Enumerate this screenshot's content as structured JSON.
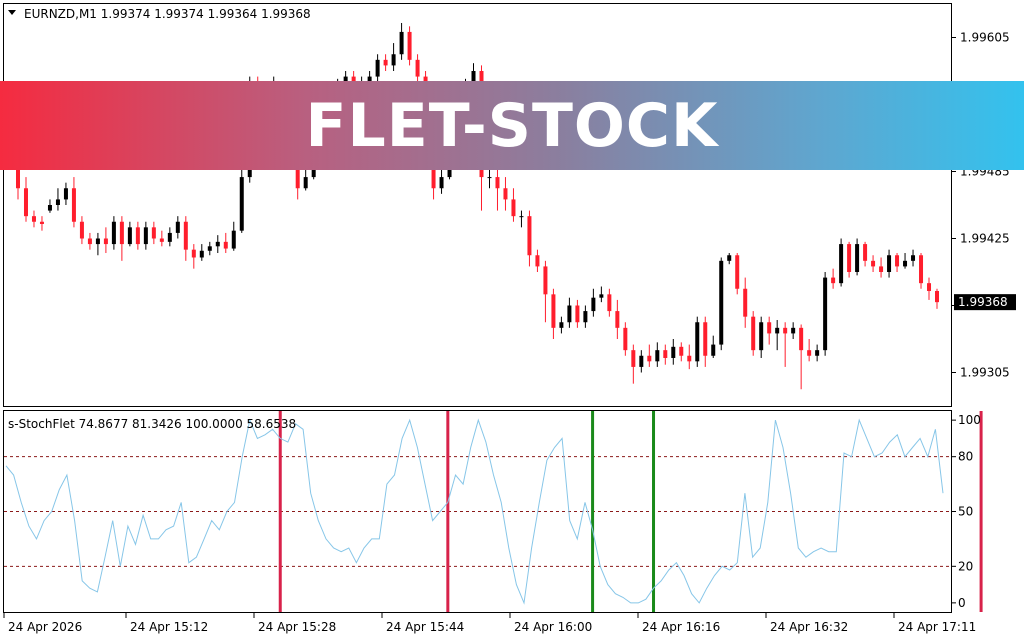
{
  "window": {
    "symbol_info": "EURNZD,M1  1.99374 1.99374 1.99364 1.99368",
    "current_price": "1.99368"
  },
  "banner": {
    "text": "FLET-STOCK"
  },
  "indicator": {
    "label": "s-StochFlet 74.8677 81.3426 100.0000 58.6538"
  },
  "colors": {
    "bull": "#000000",
    "bear": "#ff1e2d",
    "stoch_line": "#87c6e8",
    "level_line": "#8b1a1a",
    "sell_signal": "#d8224a",
    "buy_signal": "#1a8a1a"
  },
  "chart_data": [
    {
      "type": "candlestick",
      "y_ticks": [
        "1.99605",
        "1.99545",
        "1.99485",
        "1.99425",
        "1.99365",
        "1.99305"
      ],
      "y_tick_values": [
        1.99605,
        1.99545,
        1.99485,
        1.99425,
        1.99365,
        1.99305
      ],
      "ylim": [
        1.99275,
        1.99635
      ],
      "last_price": 1.99368,
      "candles": [
        [
          1.9949,
          1.9947,
          1.995,
          1.9946
        ],
        [
          1.9947,
          1.99445,
          1.9948,
          1.9944
        ],
        [
          1.99445,
          1.9944,
          1.9945,
          1.99435
        ],
        [
          1.9944,
          1.99438,
          1.99445,
          1.99432
        ],
        [
          1.9945,
          1.99455,
          1.9946,
          1.99448
        ],
        [
          1.99455,
          1.9946,
          1.9947,
          1.9945
        ],
        [
          1.9946,
          1.9947,
          1.99475,
          1.99455
        ],
        [
          1.9947,
          1.9944,
          1.9948,
          1.99435
        ],
        [
          1.9944,
          1.99425,
          1.99445,
          1.9942
        ],
        [
          1.99425,
          1.9942,
          1.9943,
          1.99415
        ],
        [
          1.9942,
          1.99425,
          1.9943,
          1.9941
        ],
        [
          1.99425,
          1.9942,
          1.99435,
          1.99412
        ],
        [
          1.9942,
          1.9944,
          1.99445,
          1.99415
        ],
        [
          1.9944,
          1.9942,
          1.99445,
          1.99405
        ],
        [
          1.9942,
          1.99435,
          1.9944,
          1.99418
        ],
        [
          1.99435,
          1.9942,
          1.9944,
          1.99415
        ],
        [
          1.9942,
          1.99435,
          1.9944,
          1.99415
        ],
        [
          1.99435,
          1.99425,
          1.9944,
          1.9942
        ],
        [
          1.99425,
          1.99422,
          1.99432,
          1.99418
        ],
        [
          1.99422,
          1.9943,
          1.99435,
          1.99418
        ],
        [
          1.9943,
          1.9944,
          1.99445,
          1.99425
        ],
        [
          1.9944,
          1.99415,
          1.99445,
          1.99405
        ],
        [
          1.99415,
          1.99408,
          1.9942,
          1.99398
        ],
        [
          1.99408,
          1.99414,
          1.9942,
          1.99405
        ],
        [
          1.99414,
          1.99418,
          1.99422,
          1.9941
        ],
        [
          1.99418,
          1.99422,
          1.99428,
          1.99412
        ],
        [
          1.99422,
          1.99416,
          1.9943,
          1.99412
        ],
        [
          1.99416,
          1.99432,
          1.9944,
          1.99414
        ],
        [
          1.99432,
          1.9948,
          1.9954,
          1.9943
        ],
        [
          1.9948,
          1.9956,
          1.9957,
          1.99475
        ],
        [
          1.9956,
          1.9955,
          1.9957,
          1.99545
        ],
        [
          1.9955,
          1.99555,
          1.99565,
          1.99548
        ],
        [
          1.99555,
          1.9956,
          1.9957,
          1.99552
        ],
        [
          1.9956,
          1.9954,
          1.99565,
          1.99535
        ],
        [
          1.9954,
          1.99545,
          1.99555,
          1.99535
        ],
        [
          1.99545,
          1.9947,
          1.9956,
          1.9946
        ],
        [
          1.9947,
          1.9948,
          1.9949,
          1.99468
        ],
        [
          1.9948,
          1.9953,
          1.9954,
          1.99478
        ],
        [
          1.9953,
          1.99545,
          1.9955,
          1.99525
        ],
        [
          1.99545,
          1.9954,
          1.99552,
          1.99535
        ],
        [
          1.9954,
          1.9956,
          1.99568,
          1.99535
        ],
        [
          1.9956,
          1.9957,
          1.99575,
          1.99555
        ],
        [
          1.9957,
          1.9956,
          1.99575,
          1.99555
        ],
        [
          1.9956,
          1.99565,
          1.9957,
          1.99555
        ],
        [
          1.99565,
          1.9957,
          1.99575,
          1.9956
        ],
        [
          1.9957,
          1.99585,
          1.9959,
          1.99565
        ],
        [
          1.99585,
          1.9958,
          1.9959,
          1.99575
        ],
        [
          1.9958,
          1.9959,
          1.996,
          1.99575
        ],
        [
          1.9959,
          1.9961,
          1.99618,
          1.99585
        ],
        [
          1.9961,
          1.99585,
          1.99615,
          1.9958
        ],
        [
          1.99585,
          1.9957,
          1.9959,
          1.9956
        ],
        [
          1.9957,
          1.99545,
          1.99575,
          1.9952
        ],
        [
          1.99545,
          1.9947,
          1.9955,
          1.9946
        ],
        [
          1.9947,
          1.9948,
          1.9949,
          1.99465
        ],
        [
          1.9948,
          1.9953,
          1.9954,
          1.99478
        ],
        [
          1.9953,
          1.99545,
          1.9955,
          1.99525
        ],
        [
          1.99545,
          1.9956,
          1.99568,
          1.9954
        ],
        [
          1.9956,
          1.99575,
          1.99582,
          1.99555
        ],
        [
          1.99575,
          1.9948,
          1.9958,
          1.9945
        ],
        [
          1.9948,
          1.9948,
          1.9949,
          1.9947
        ],
        [
          1.9948,
          1.9947,
          1.9949,
          1.9945
        ],
        [
          1.9947,
          1.9946,
          1.9948,
          1.9945
        ],
        [
          1.9946,
          1.99445,
          1.9947,
          1.9944
        ],
        [
          1.99445,
          1.99445,
          1.9945,
          1.99435
        ],
        [
          1.99445,
          1.9941,
          1.9945,
          1.994
        ],
        [
          1.9941,
          1.994,
          1.99415,
          1.99395
        ],
        [
          1.994,
          1.99375,
          1.99405,
          1.9935
        ],
        [
          1.99375,
          1.99345,
          1.9938,
          1.99335
        ],
        [
          1.99345,
          1.9935,
          1.99355,
          1.9934
        ],
        [
          1.9935,
          1.99365,
          1.99372,
          1.99345
        ],
        [
          1.99365,
          1.9935,
          1.9937,
          1.99345
        ],
        [
          1.9935,
          1.9936,
          1.99365,
          1.99345
        ],
        [
          1.9936,
          1.99372,
          1.9938,
          1.99355
        ],
        [
          1.99372,
          1.99375,
          1.99382,
          1.99368
        ],
        [
          1.99375,
          1.9936,
          1.9938,
          1.99355
        ],
        [
          1.9936,
          1.99345,
          1.9937,
          1.99335
        ],
        [
          1.99345,
          1.99325,
          1.9935,
          1.9932
        ],
        [
          1.99325,
          1.9931,
          1.9933,
          1.99295
        ],
        [
          1.9931,
          1.9932,
          1.99325,
          1.99305
        ],
        [
          1.9932,
          1.99315,
          1.9933,
          1.9931
        ],
        [
          1.99315,
          1.99325,
          1.99332,
          1.9931
        ],
        [
          1.99325,
          1.99318,
          1.9933,
          1.99312
        ],
        [
          1.99318,
          1.99328,
          1.99335,
          1.99312
        ],
        [
          1.99328,
          1.9932,
          1.99332,
          1.99315
        ],
        [
          1.9932,
          1.99315,
          1.9933,
          1.99308
        ],
        [
          1.99315,
          1.9935,
          1.99355,
          1.9931
        ],
        [
          1.9935,
          1.9932,
          1.99355,
          1.9931
        ],
        [
          1.9932,
          1.9933,
          1.99338,
          1.99318
        ],
        [
          1.9933,
          1.99405,
          1.99408,
          1.99325
        ],
        [
          1.99405,
          1.9941,
          1.99412,
          1.99402
        ],
        [
          1.9941,
          1.9938,
          1.99412,
          1.99375
        ],
        [
          1.9938,
          1.99355,
          1.9939,
          1.99345
        ],
        [
          1.99355,
          1.99325,
          1.9936,
          1.9932
        ],
        [
          1.99325,
          1.9935,
          1.99355,
          1.99318
        ],
        [
          1.9935,
          1.9934,
          1.99355,
          1.9933
        ],
        [
          1.9934,
          1.99345,
          1.99352,
          1.99325
        ],
        [
          1.99345,
          1.9934,
          1.9935,
          1.9931
        ],
        [
          1.9934,
          1.99345,
          1.9935,
          1.99335
        ],
        [
          1.99345,
          1.99325,
          1.99348,
          1.9929
        ],
        [
          1.99325,
          1.9932,
          1.99335,
          1.99315
        ],
        [
          1.9932,
          1.99325,
          1.9933,
          1.99315
        ],
        [
          1.99325,
          1.9939,
          1.99395,
          1.9932
        ],
        [
          1.9939,
          1.99385,
          1.99398,
          1.9938
        ],
        [
          1.99385,
          1.9942,
          1.99425,
          1.99382
        ],
        [
          1.9942,
          1.99395,
          1.99422,
          1.9939
        ],
        [
          1.99395,
          1.9942,
          1.99425,
          1.99392
        ],
        [
          1.9942,
          1.99405,
          1.99422,
          1.994
        ],
        [
          1.99405,
          1.994,
          1.9941,
          1.99395
        ],
        [
          1.994,
          1.99395,
          1.99408,
          1.9939
        ],
        [
          1.99395,
          1.9941,
          1.99415,
          1.9939
        ],
        [
          1.9941,
          1.994,
          1.99412,
          1.99395
        ],
        [
          1.994,
          1.99405,
          1.99412,
          1.99398
        ],
        [
          1.99405,
          1.9941,
          1.99415,
          1.994
        ],
        [
          1.9941,
          1.99385,
          1.99412,
          1.9938
        ],
        [
          1.99385,
          1.99378,
          1.9939,
          1.9937
        ],
        [
          1.99378,
          1.99368,
          1.9938,
          1.99362
        ]
      ]
    },
    {
      "type": "line",
      "name": "s-StochFlet",
      "ylim": [
        -5,
        105
      ],
      "y_ticks": [
        100,
        80,
        50,
        20,
        0
      ],
      "levels": [
        80,
        50,
        20
      ],
      "values": [
        75,
        70,
        55,
        42,
        35,
        45,
        50,
        62,
        70,
        45,
        12,
        8,
        6,
        25,
        45,
        20,
        42,
        32,
        48,
        35,
        35,
        40,
        42,
        55,
        22,
        25,
        35,
        45,
        40,
        50,
        55,
        80,
        100,
        90,
        92,
        95,
        90,
        88,
        98,
        95,
        60,
        45,
        35,
        30,
        28,
        30,
        22,
        30,
        35,
        35,
        65,
        70,
        90,
        100,
        85,
        65,
        45,
        50,
        55,
        70,
        65,
        85,
        100,
        88,
        70,
        55,
        30,
        10,
        0,
        30,
        55,
        78,
        85,
        90,
        45,
        35,
        55,
        40,
        20,
        10,
        5,
        3,
        0,
        0,
        2,
        8,
        12,
        18,
        22,
        15,
        5,
        0,
        8,
        15,
        20,
        18,
        22,
        60,
        25,
        30,
        55,
        100,
        85,
        60,
        30,
        25,
        28,
        30,
        28,
        28,
        82,
        80,
        100,
        90,
        80,
        82,
        88,
        92,
        80,
        85,
        90,
        80,
        95,
        60
      ],
      "sell_signals": [
        36,
        58,
        128
      ],
      "buy_signals": [
        77,
        85
      ]
    }
  ],
  "x_axis": {
    "labels": [
      "24 Apr 2026",
      "24 Apr 15:12",
      "24 Apr 15:28",
      "24 Apr 15:44",
      "24 Apr 16:00",
      "24 Apr 16:16",
      "24 Apr 16:32",
      "24 Apr 17:11"
    ]
  }
}
